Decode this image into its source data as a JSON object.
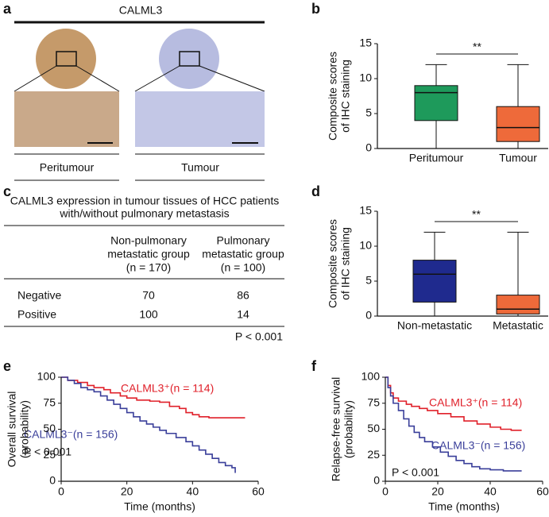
{
  "panel_a": {
    "letter": "a",
    "title": "CALML3",
    "labels": [
      "Peritumour",
      "Tumour"
    ]
  },
  "panel_c": {
    "letter": "c",
    "title": [
      "CALML3 expression in tumour tissues of HCC patients",
      "with/without pulmonary metastasis"
    ],
    "columns": [
      [
        "Non-pulmonary",
        "metastatic group",
        "(n = 170)"
      ],
      [
        "Pulmonary",
        "metastatic group",
        "(n = 100)"
      ]
    ],
    "rows": [
      [
        "Negative",
        70,
        86
      ],
      [
        "Positive",
        100,
        14
      ]
    ],
    "footnote": "P < 0.001"
  },
  "chart_data": [
    {
      "type": "box",
      "letter": "b",
      "ylabel": [
        "Composite scores",
        "of IHC staining"
      ],
      "annotation": "**",
      "categories": [
        "Peritumour",
        "Tumour"
      ],
      "colors": [
        "#1e9a5b",
        "#ee6a3a"
      ],
      "min": [
        0,
        0
      ],
      "q1": [
        4,
        1
      ],
      "median": [
        8,
        3
      ],
      "q3": [
        9,
        6
      ],
      "max": [
        12,
        12
      ],
      "ylim": [
        0,
        15
      ],
      "yticks": [
        0,
        5,
        10,
        15
      ]
    },
    {
      "type": "box",
      "letter": "d",
      "ylabel": [
        "Composite scores",
        "of IHC staining"
      ],
      "annotation": "**",
      "categories": [
        "Non-metastatic",
        "Metastatic"
      ],
      "colors": [
        "#1f2a8e",
        "#ee6a3a"
      ],
      "min": [
        0,
        0
      ],
      "q1": [
        2,
        0.3
      ],
      "median": [
        6,
        1
      ],
      "q3": [
        8,
        3
      ],
      "max": [
        12,
        12
      ],
      "ylim": [
        0,
        15
      ],
      "yticks": [
        0,
        5,
        10,
        15
      ]
    },
    {
      "type": "km",
      "letter": "e",
      "ylabel": [
        "Overall survival",
        "(probability)"
      ],
      "xlabel": "Time (months)",
      "annotation": "P < 0.001",
      "series": [
        {
          "name": "CALML3⁺(n = 114)",
          "color": "#e0202a",
          "x": [
            0,
            2,
            5,
            8,
            10,
            13,
            15,
            18,
            20,
            23,
            27,
            30,
            33,
            36,
            38,
            40,
            42,
            45,
            56
          ],
          "values": [
            100,
            97,
            95,
            92,
            90,
            88,
            85,
            82,
            80,
            78,
            77,
            76,
            72,
            70,
            66,
            64,
            62,
            61,
            61
          ]
        },
        {
          "name": "CALML3⁻(n = 156)",
          "color": "#3a3f9a",
          "x": [
            0,
            2,
            4,
            6,
            8,
            10,
            12,
            14,
            16,
            18,
            20,
            22,
            24,
            26,
            28,
            30,
            32,
            35,
            38,
            40,
            42,
            44,
            46,
            48,
            50,
            52,
            53
          ],
          "values": [
            100,
            97,
            94,
            90,
            88,
            86,
            82,
            78,
            74,
            70,
            66,
            62,
            58,
            55,
            52,
            49,
            46,
            42,
            38,
            34,
            30,
            26,
            22,
            18,
            15,
            13,
            8
          ]
        }
      ],
      "xlim": [
        0,
        60
      ],
      "xticks": [
        0,
        20,
        40,
        60
      ],
      "ylim": [
        0,
        100
      ],
      "yticks": [
        0,
        25,
        50,
        75,
        100
      ]
    },
    {
      "type": "km",
      "letter": "f",
      "ylabel": [
        "Relapse-free survival",
        "(probability)"
      ],
      "xlabel": "Time (months)",
      "annotation": "P < 0.001",
      "series": [
        {
          "name": "CALML3⁺(n = 114)",
          "color": "#e0202a",
          "x": [
            0,
            1,
            2,
            3,
            5,
            8,
            10,
            13,
            16,
            20,
            25,
            30,
            35,
            40,
            44,
            48,
            52
          ],
          "values": [
            100,
            92,
            85,
            80,
            77,
            74,
            72,
            70,
            68,
            65,
            62,
            58,
            55,
            52,
            50,
            49,
            49
          ]
        },
        {
          "name": "CALML3⁻(n = 156)",
          "color": "#3a3f9a",
          "x": [
            0,
            1,
            2,
            3,
            5,
            7,
            9,
            11,
            13,
            15,
            18,
            21,
            24,
            27,
            30,
            33,
            36,
            40,
            45,
            52
          ],
          "values": [
            100,
            90,
            82,
            75,
            68,
            60,
            53,
            47,
            42,
            38,
            33,
            28,
            24,
            20,
            17,
            14,
            12,
            11,
            10,
            10
          ]
        }
      ],
      "xlim": [
        0,
        60
      ],
      "xticks": [
        0,
        20,
        40,
        60
      ],
      "ylim": [
        0,
        100
      ],
      "yticks": [
        0,
        25,
        50,
        75,
        100
      ]
    }
  ]
}
